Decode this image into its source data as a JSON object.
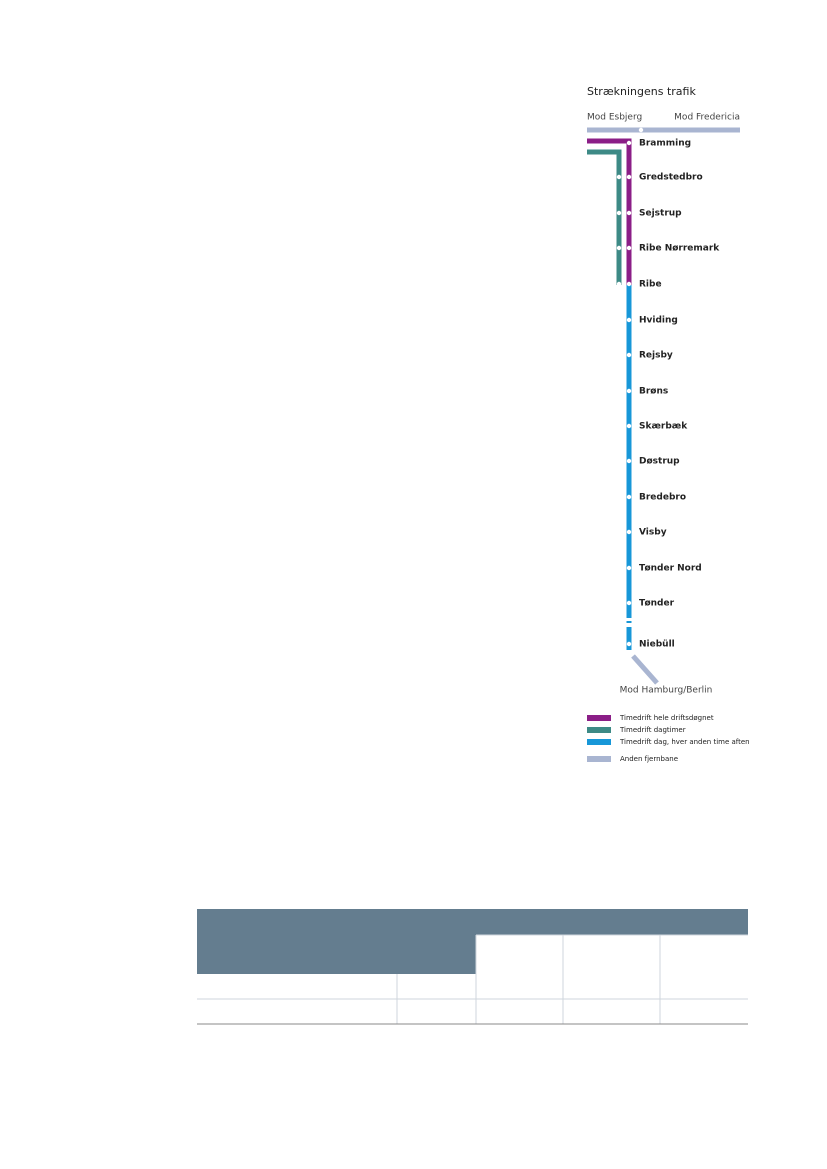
{
  "title": "Strækningens trafik",
  "directions": {
    "west": "Mod Esbjerg",
    "east": "Mod Fredericia",
    "south": "Mod Hamburg/Berlin"
  },
  "stations": [
    "Bramming",
    "Gredstedbro",
    "Sejstrup",
    "Ribe Nørremark",
    "Ribe",
    "Hviding",
    "Rejsby",
    "Brøns",
    "Skærbæk",
    "Døstrup",
    "Bredebro",
    "Visby",
    "Tønder Nord",
    "Tønder",
    "Niebüll"
  ],
  "legend": [
    "Timedrift hele driftsdøgnet",
    "Timedrift dagtimer",
    "Timedrift dag, hver anden time aften",
    "Anden fjernbane"
  ]
}
